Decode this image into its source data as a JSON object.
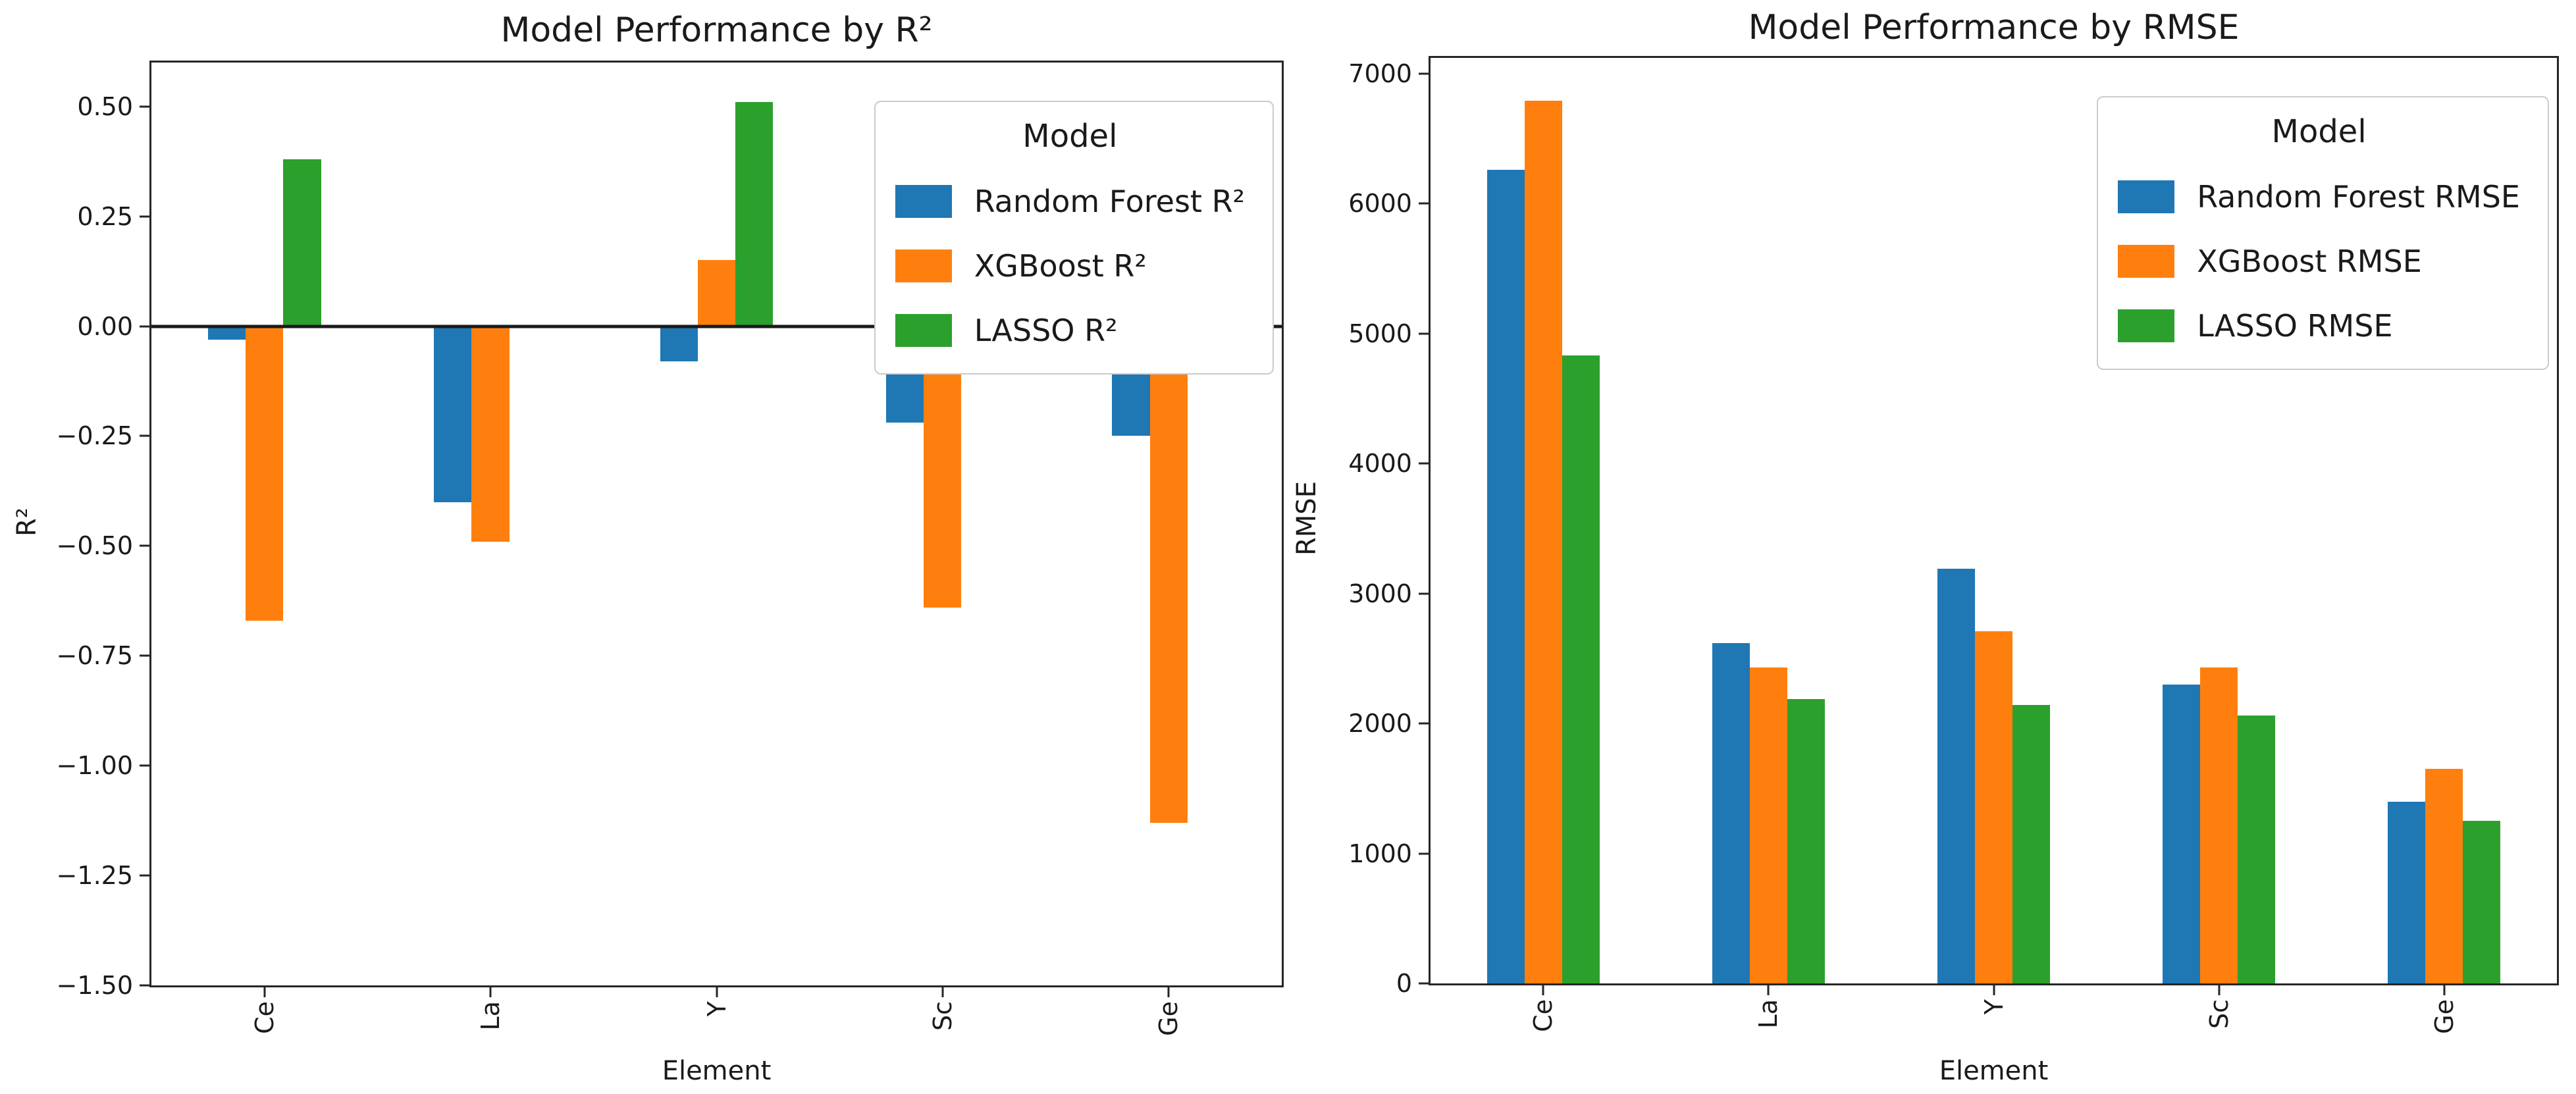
{
  "figure": {
    "background": "#ffffff"
  },
  "chart_data": [
    {
      "type": "bar",
      "title": "Model Performance by R²",
      "xlabel": "Element",
      "ylabel": "R²",
      "legend_title": "Model",
      "legend_position": "upper right",
      "grid": false,
      "categories": [
        "Ce",
        "La",
        "Y",
        "Sc",
        "Ge"
      ],
      "series": [
        {
          "name": "Random Forest R²",
          "color": "#1f77b4",
          "values": [
            -0.03,
            -0.4,
            -0.08,
            -0.22,
            -0.25
          ]
        },
        {
          "name": "XGBoost R²",
          "color": "#ff7f0e",
          "values": [
            -0.67,
            -0.49,
            0.15,
            -0.64,
            -1.13
          ]
        },
        {
          "name": "LASSO R²",
          "color": "#2ca02c",
          "values": [
            0.38,
            0.0,
            0.51,
            0.0,
            0.0
          ]
        }
      ],
      "ylim": [
        -1.5,
        0.6
      ],
      "yticks": [
        {
          "v": 0.5,
          "label": "0.50"
        },
        {
          "v": 0.25,
          "label": "0.25"
        },
        {
          "v": 0.0,
          "label": "0.00"
        },
        {
          "v": -0.25,
          "label": "−0.25"
        },
        {
          "v": -0.5,
          "label": "−0.50"
        },
        {
          "v": -0.75,
          "label": "−0.75"
        },
        {
          "v": -1.0,
          "label": "−1.00"
        },
        {
          "v": -1.25,
          "label": "−1.25"
        },
        {
          "v": -1.5,
          "label": "−1.50"
        }
      ],
      "zero_line": true,
      "bar_group_fraction": 0.5
    },
    {
      "type": "bar",
      "title": "Model Performance by RMSE",
      "xlabel": "Element",
      "ylabel": "RMSE",
      "legend_title": "Model",
      "legend_position": "upper right",
      "grid": false,
      "categories": [
        "Ce",
        "La",
        "Y",
        "Sc",
        "Ge"
      ],
      "series": [
        {
          "name": "Random Forest RMSE",
          "color": "#1f77b4",
          "values": [
            6260,
            2620,
            3190,
            2300,
            1400
          ]
        },
        {
          "name": "XGBoost RMSE",
          "color": "#ff7f0e",
          "values": [
            6790,
            2430,
            2710,
            2430,
            1650
          ]
        },
        {
          "name": "LASSO RMSE",
          "color": "#2ca02c",
          "values": [
            4830,
            2190,
            2140,
            2060,
            1250
          ]
        }
      ],
      "ylim": [
        0,
        7120
      ],
      "yticks": [
        {
          "v": 7000,
          "label": "7000"
        },
        {
          "v": 6000,
          "label": "6000"
        },
        {
          "v": 5000,
          "label": "5000"
        },
        {
          "v": 4000,
          "label": "4000"
        },
        {
          "v": 3000,
          "label": "3000"
        },
        {
          "v": 2000,
          "label": "2000"
        },
        {
          "v": 1000,
          "label": "1000"
        },
        {
          "v": 0,
          "label": "0"
        }
      ],
      "zero_line": false,
      "bar_group_fraction": 0.5
    }
  ]
}
